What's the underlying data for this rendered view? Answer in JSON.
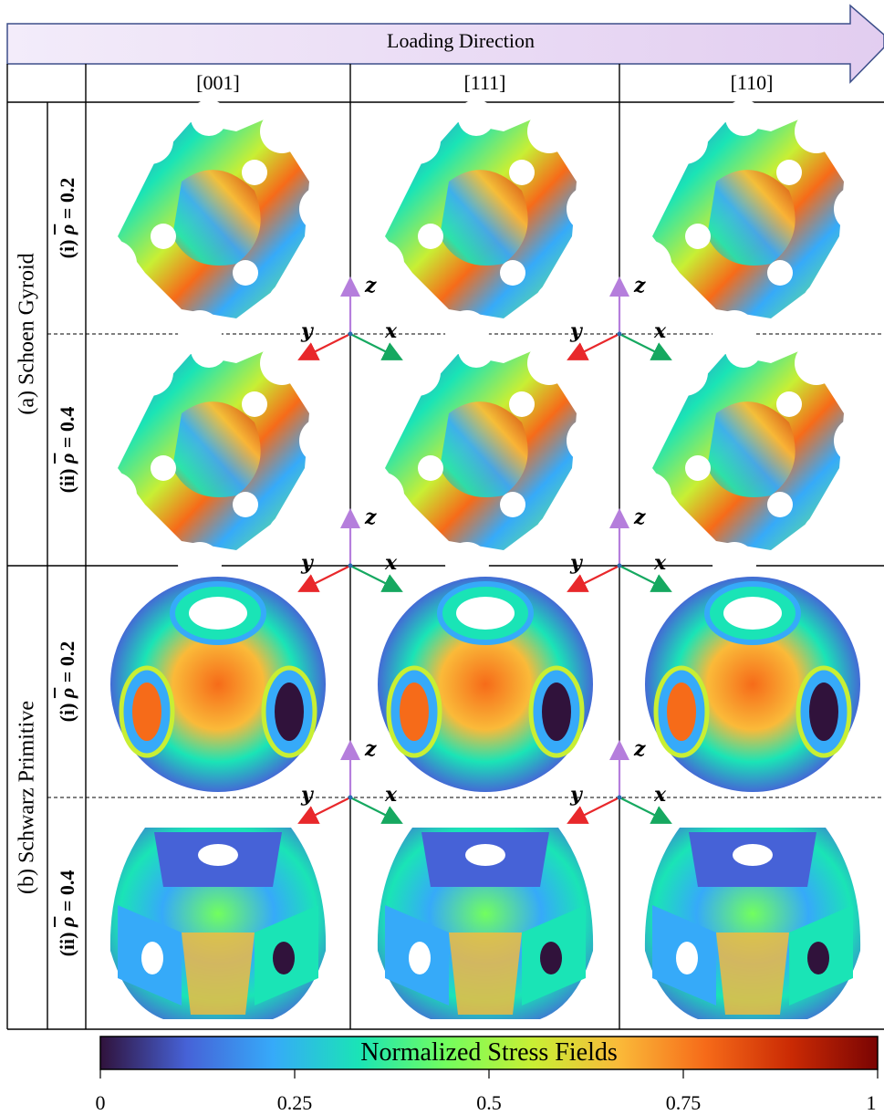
{
  "banner": {
    "label": "Loading Direction"
  },
  "columns": [
    "[001]",
    "[111]",
    "[110]"
  ],
  "groups": [
    {
      "label": "(a) Schoen Gyroid",
      "rows": [
        {
          "prefix": "(i) ",
          "rho": "ρ",
          "suffix": " = 0.2"
        },
        {
          "prefix": "(ii) ",
          "rho": "ρ",
          "suffix": " = 0.4"
        }
      ]
    },
    {
      "label": "(b) Schwarz Primitive",
      "rows": [
        {
          "prefix": "(i) ",
          "rho": "ρ",
          "suffix": " = 0.2"
        },
        {
          "prefix": "(ii) ",
          "rho": "ρ",
          "suffix": " = 0.4"
        }
      ]
    }
  ],
  "axes": {
    "z": "z",
    "y": "y",
    "x": "x",
    "colors": {
      "z": "#b57edc",
      "y": "#e8282b",
      "x": "#16a860"
    }
  },
  "colorbar": {
    "title": "Normalized Stress Fields",
    "ticks": [
      "0",
      "0.25",
      "0.5",
      "0.75",
      "1"
    ],
    "tick_values": [
      0,
      0.25,
      0.5,
      0.75,
      1
    ],
    "stops": [
      "#30123b",
      "#4662d7",
      "#36aaf9",
      "#1ae4b6",
      "#72fe5e",
      "#c8ef34",
      "#faba39",
      "#f66b19",
      "#ca2a04",
      "#7a0403"
    ]
  }
}
